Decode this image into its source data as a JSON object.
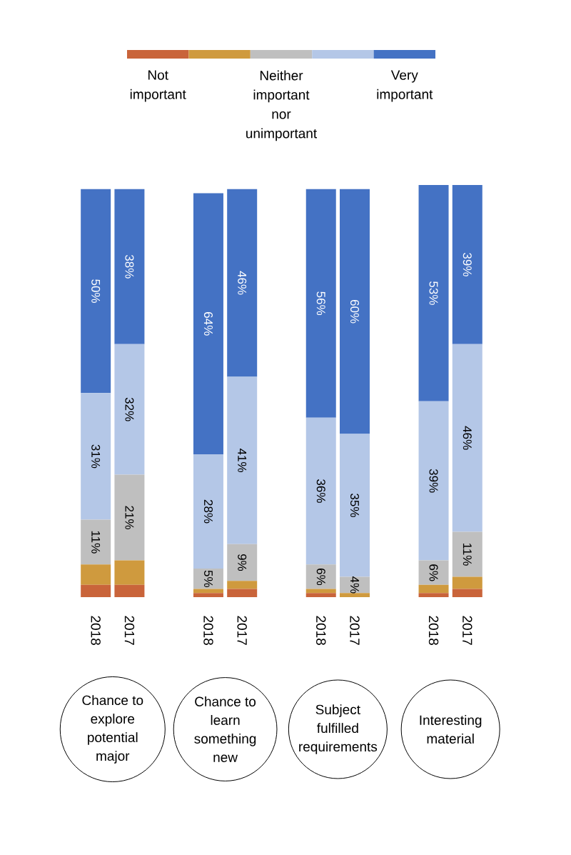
{
  "chart_data": {
    "type": "bar",
    "stacked": true,
    "legend": "top",
    "categories": [
      "2018",
      "2017",
      "2018",
      "2017",
      "2018",
      "2017",
      "2018",
      "2017"
    ],
    "series": [
      {
        "name": "Not important",
        "color": "#c9643a",
        "values": [
          3,
          3,
          1,
          2,
          1,
          0,
          1,
          2
        ]
      },
      {
        "color": "#cf9a3e",
        "values": [
          5,
          6,
          1,
          2,
          1,
          1,
          2,
          3
        ]
      },
      {
        "name": "Neither important nor unimportant",
        "color": "#bfbfbf",
        "values": [
          11,
          21,
          5,
          9,
          6,
          4,
          6,
          11
        ],
        "value_labels": [
          "11%",
          "21%",
          "5%",
          "9%",
          "6%",
          "4%",
          "6%",
          "11%"
        ]
      },
      {
        "color": "#b4c7e7",
        "values": [
          31,
          32,
          28,
          41,
          36,
          35,
          39,
          46
        ],
        "value_labels": [
          "31%",
          "32%",
          "28%",
          "41%",
          "36%",
          "35%",
          "39%",
          "46%"
        ]
      },
      {
        "name": "Very important",
        "color": "#4472c4",
        "values": [
          50,
          38,
          64,
          46,
          56,
          60,
          53,
          39
        ],
        "value_labels": [
          "50%",
          "38%",
          "64%",
          "46%",
          "56%",
          "60%",
          "53%",
          "39%"
        ]
      }
    ],
    "annotations": [
      "Chance to explore potential major",
      "Chance to learn something new",
      "Subject fulfilled requirements",
      "Interesting material"
    ]
  }
}
